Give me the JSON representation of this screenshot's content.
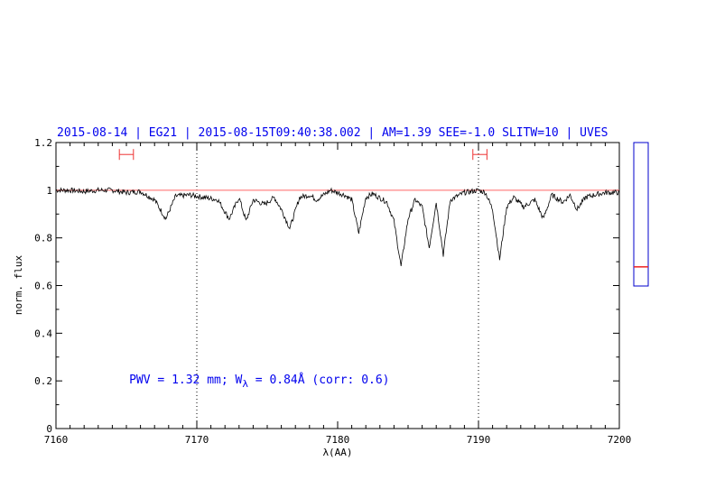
{
  "chart_data": {
    "type": "line",
    "title": "2015-08-14 | EG21 | 2015-08-15T09:40:38.002 | AM=1.39 SEE=-1.0 SLITW=10 | UVES",
    "xlabel": "λ(AA)",
    "ylabel": "norm. flux",
    "xlim": [
      7160,
      7200
    ],
    "ylim": [
      0,
      1.2
    ],
    "x_ticks": [
      7160,
      7170,
      7180,
      7190,
      7200
    ],
    "y_ticks": [
      0,
      0.2,
      0.4,
      0.6,
      0.8,
      1,
      1.2
    ],
    "x_tick_labels": [
      "7160",
      "7170",
      "7180",
      "7190",
      "7200"
    ],
    "y_tick_labels": [
      "0",
      "0.2",
      "0.4",
      "0.6",
      "0.8",
      "1",
      "1.2"
    ],
    "grid": false,
    "continuum_level": 1.0,
    "vertical_markers": [
      7170,
      7190
    ],
    "intervals": [
      {
        "x0": 7164.5,
        "x1": 7165.5,
        "y": 1.15
      },
      {
        "x0": 7189.6,
        "x1": 7190.6,
        "y": 1.15
      }
    ],
    "annotation": {
      "prefix": "PWV = 1.32 mm; W",
      "subscript": "λ",
      "suffix": " = 0.84Å (corr: 0.6)",
      "x": 7165.2,
      "y": 0.19
    },
    "side_indicator": {
      "value": 0.68,
      "min": 0.6,
      "max": 1.2
    },
    "series": [
      {
        "x": [
          7160,
          7161,
          7162,
          7163,
          7164,
          7165,
          7166,
          7167,
          7167.8,
          7168.5,
          7169.5,
          7170.5,
          7171.5,
          7172.3,
          7173,
          7173.5,
          7174,
          7174.8,
          7175.5,
          7176,
          7176.6,
          7177.3,
          7178,
          7178.5,
          7179.5,
          7180.5,
          7181,
          7181.5,
          7182,
          7182.5,
          7183.5,
          7184,
          7184.5,
          7185,
          7185.5,
          7186,
          7186.5,
          7187,
          7187.5,
          7188,
          7189,
          7190,
          7190.5,
          7191,
          7191.5,
          7192,
          7192.5,
          7193.2,
          7194,
          7194.6,
          7195.2,
          7196,
          7196.5,
          7197,
          7197.6,
          7198.2,
          7199,
          7200
        ],
        "y": [
          1.0,
          1.0,
          0.995,
          1.0,
          1.0,
          0.99,
          0.995,
          0.96,
          0.88,
          0.975,
          0.98,
          0.97,
          0.96,
          0.88,
          0.97,
          0.87,
          0.96,
          0.94,
          0.97,
          0.92,
          0.84,
          0.97,
          0.98,
          0.96,
          1.0,
          0.98,
          0.96,
          0.82,
          0.97,
          0.985,
          0.95,
          0.87,
          0.68,
          0.88,
          0.96,
          0.93,
          0.76,
          0.95,
          0.73,
          0.96,
          0.99,
          1.0,
          0.99,
          0.92,
          0.71,
          0.93,
          0.97,
          0.93,
          0.96,
          0.88,
          0.98,
          0.95,
          0.98,
          0.92,
          0.97,
          0.98,
          0.99,
          0.99
        ]
      }
    ]
  }
}
